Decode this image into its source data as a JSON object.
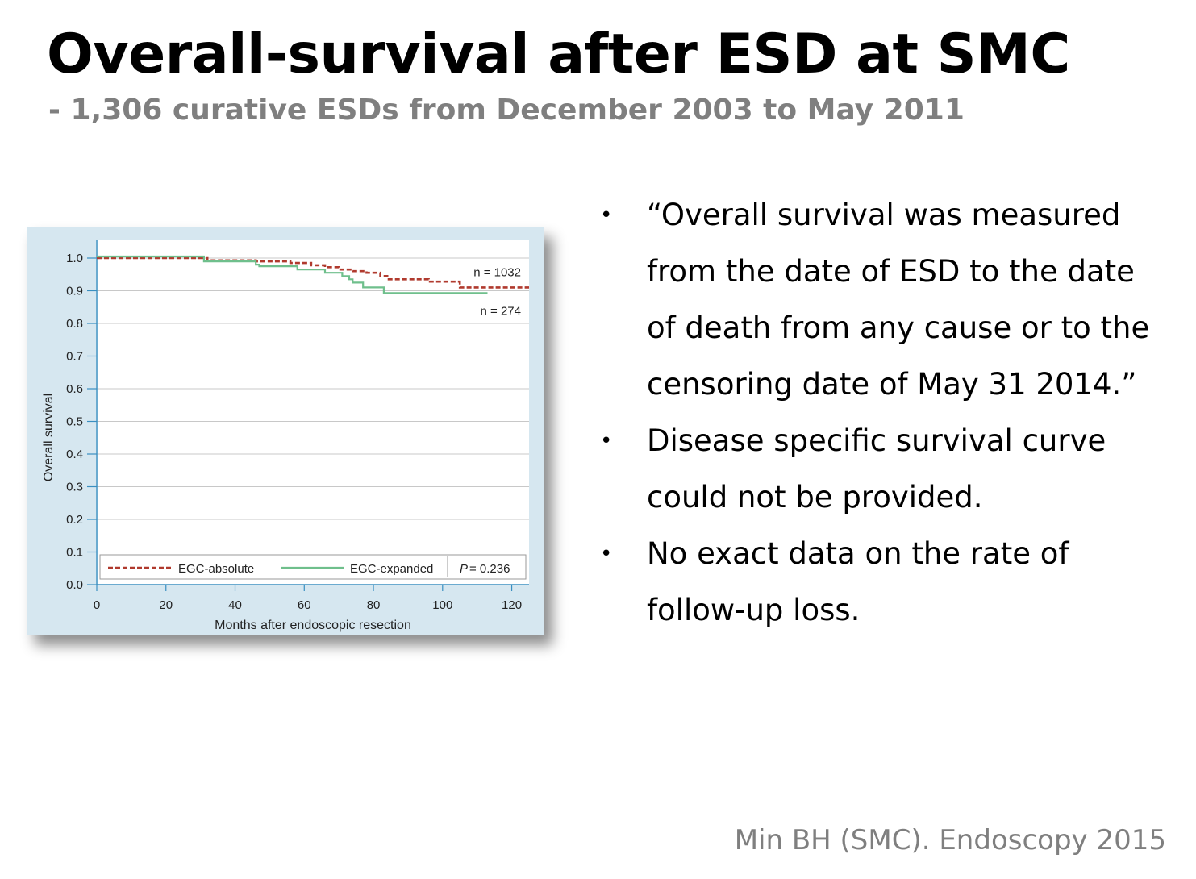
{
  "slide": {
    "title": "Overall-survival after ESD at SMC",
    "subtitle": "- 1,306 curative ESDs from December 2003 to May 2011",
    "bullets": [
      "“Overall survival was measured from the date of ESD to the date of death from any cause or to the censoring date of May 31 2014.”",
      "Disease specific survival curve could not be provided.",
      "No exact data on the rate of follow-up loss."
    ],
    "bullet_symbol": "•",
    "citation": "Min BH (SMC). Endoscopy 2015"
  },
  "chart_data": {
    "type": "line",
    "xlabel": "Months after endoscopic resection",
    "ylabel": "Overall survival",
    "xlim": [
      0,
      125
    ],
    "ylim": [
      0,
      1.0
    ],
    "x_ticks": [
      0,
      20,
      40,
      60,
      80,
      100,
      120
    ],
    "x_tick_labels": [
      "0",
      "20",
      "40",
      "60",
      "80",
      "100",
      "120"
    ],
    "y_ticks": [
      0.0,
      0.1,
      0.2,
      0.3,
      0.4,
      0.5,
      0.6,
      0.7,
      0.8,
      0.9,
      1.0
    ],
    "y_tick_labels": [
      "0.0",
      "0.1",
      "0.2",
      "0.3",
      "0.4",
      "0.5",
      "0.6",
      "0.7",
      "0.8",
      "0.9",
      "1.0"
    ],
    "grid": "horizontal",
    "legend_position": "bottom",
    "series": [
      {
        "name": "EGC-absolute",
        "color": "#b03a2e",
        "style": "dashed",
        "step_points": [
          [
            0,
            1.0
          ],
          [
            32,
            1.0
          ],
          [
            32,
            0.993
          ],
          [
            46,
            0.993
          ],
          [
            46,
            0.99
          ],
          [
            56,
            0.99
          ],
          [
            56,
            0.985
          ],
          [
            62,
            0.985
          ],
          [
            62,
            0.978
          ],
          [
            66,
            0.978
          ],
          [
            66,
            0.972
          ],
          [
            70,
            0.972
          ],
          [
            70,
            0.965
          ],
          [
            74,
            0.965
          ],
          [
            74,
            0.96
          ],
          [
            78,
            0.96
          ],
          [
            78,
            0.955
          ],
          [
            82,
            0.955
          ],
          [
            82,
            0.945
          ],
          [
            84,
            0.945
          ],
          [
            84,
            0.935
          ],
          [
            96,
            0.935
          ],
          [
            96,
            0.928
          ],
          [
            105,
            0.928
          ],
          [
            105,
            0.91
          ],
          [
            125,
            0.91
          ]
        ]
      },
      {
        "name": "EGC-expanded",
        "color": "#6fbf8c",
        "style": "solid",
        "step_points": [
          [
            0,
            1.005
          ],
          [
            31,
            1.005
          ],
          [
            31,
            0.99
          ],
          [
            46,
            0.99
          ],
          [
            46,
            0.98
          ],
          [
            47,
            0.98
          ],
          [
            47,
            0.975
          ],
          [
            58,
            0.975
          ],
          [
            58,
            0.965
          ],
          [
            66,
            0.965
          ],
          [
            66,
            0.955
          ],
          [
            71,
            0.955
          ],
          [
            71,
            0.945
          ],
          [
            73,
            0.945
          ],
          [
            73,
            0.935
          ],
          [
            74,
            0.935
          ],
          [
            74,
            0.925
          ],
          [
            77,
            0.925
          ],
          [
            77,
            0.91
          ],
          [
            83,
            0.91
          ],
          [
            83,
            0.893
          ],
          [
            113,
            0.893
          ]
        ]
      }
    ],
    "annotations": [
      {
        "text": "n = 1032",
        "series": "EGC-absolute"
      },
      {
        "text": "n = 274",
        "series": "EGC-expanded"
      }
    ],
    "p_label": "P",
    "p_value": "= 0.236"
  }
}
